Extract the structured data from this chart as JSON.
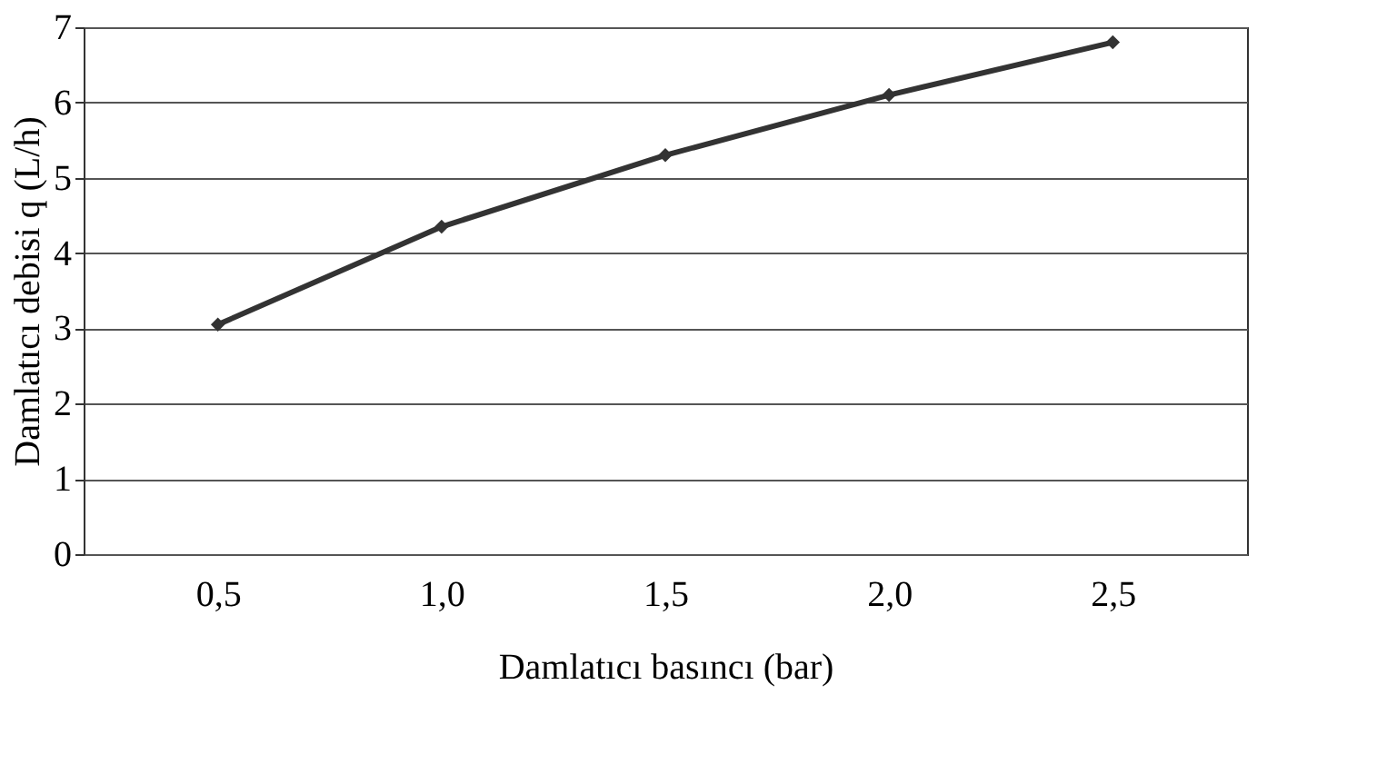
{
  "chart_data": {
    "type": "line",
    "xlabel": "Damlatıcı basıncı (bar)",
    "ylabel": "Damlatıcı debisi q (L/h)",
    "categories": [
      "0,5",
      "1,0",
      "1,5",
      "2,0",
      "2,5"
    ],
    "series": [
      {
        "color": "#333333",
        "values": [
          3.05,
          4.35,
          5.3,
          6.1,
          6.8
        ]
      }
    ],
    "ylim": [
      0,
      7
    ],
    "yticks": [
      0,
      1,
      2,
      3,
      4,
      5,
      6,
      7
    ],
    "grid": "y",
    "marker": "diamond",
    "line_style": "solid",
    "legend": false
  }
}
